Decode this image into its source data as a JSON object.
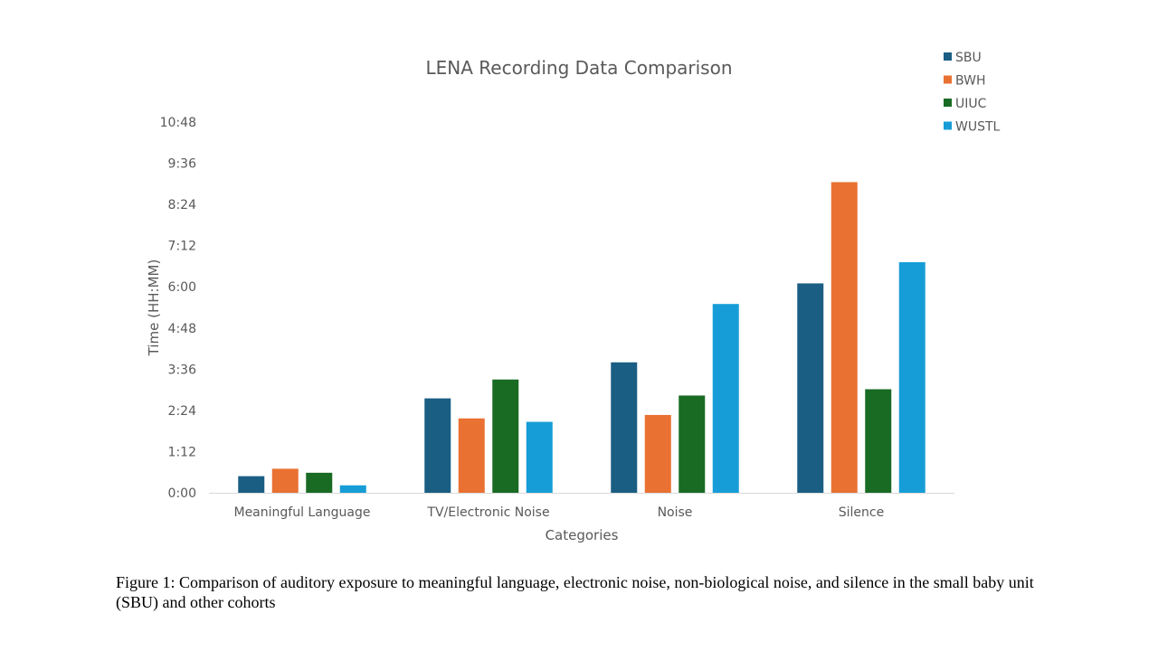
{
  "caption": "Figure 1: Comparison of auditory exposure to meaningful language, electronic noise, non-biological noise, and silence in the small baby unit (SBU) and other cohorts",
  "chart_data": {
    "type": "bar",
    "title": "LENA Recording Data Comparison",
    "xlabel": "Categories",
    "ylabel": "Time (HH:MM)",
    "categories": [
      "Meaningful Language",
      "TV/Electronic Noise",
      "Noise",
      "Silence"
    ],
    "yticks": [
      "0:00",
      "1:12",
      "2:24",
      "3:36",
      "4:48",
      "6:00",
      "7:12",
      "8:24",
      "9:36",
      "10:48"
    ],
    "ylim_minutes": [
      0,
      648
    ],
    "value_units": "minutes",
    "legend_position": "top-right",
    "grid": false,
    "series": [
      {
        "name": "SBU",
        "color": "#1a5e84",
        "values": [
          29,
          165,
          228,
          366
        ]
      },
      {
        "name": "BWH",
        "color": "#e97132",
        "values": [
          42,
          130,
          136,
          543
        ]
      },
      {
        "name": "UIUC",
        "color": "#196b24",
        "values": [
          35,
          198,
          170,
          181
        ]
      },
      {
        "name": "WUSTL",
        "color": "#169dd7",
        "values": [
          13,
          124,
          330,
          403
        ]
      }
    ]
  }
}
